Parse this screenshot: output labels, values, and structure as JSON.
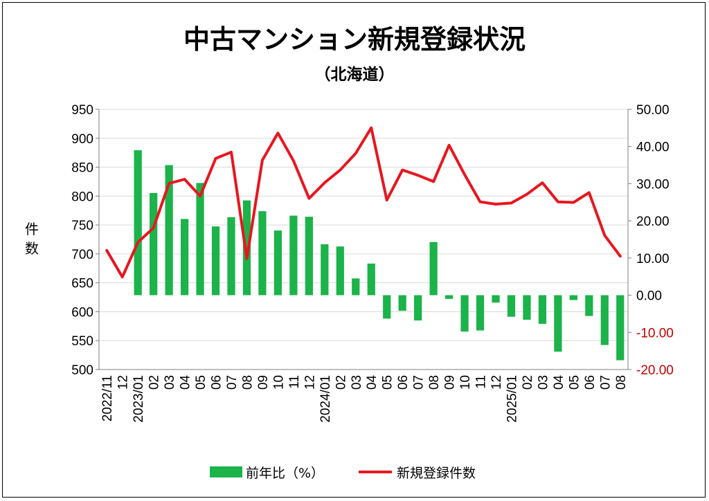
{
  "chart_data": {
    "type": "bar+line",
    "title": "中古マンション新規登録状況",
    "subtitle": "（北海道）",
    "ylabel_left": [
      "件",
      "数"
    ],
    "ylim_left": [
      500,
      950
    ],
    "yticks_left": [
      "500",
      "550",
      "600",
      "650",
      "700",
      "750",
      "800",
      "850",
      "900",
      "950"
    ],
    "ylim_right": [
      -20,
      50
    ],
    "yticks_right": [
      "-20.00",
      "-10.00",
      "0.00",
      "10.00",
      "20.00",
      "30.00",
      "40.00",
      "50.00"
    ],
    "categories": [
      "2022/11",
      "12",
      "2023/01",
      "02",
      "03",
      "04",
      "05",
      "06",
      "07",
      "08",
      "09",
      "10",
      "11",
      "12",
      "2024/01",
      "02",
      "03",
      "04",
      "05",
      "06",
      "07",
      "08",
      "09",
      "10",
      "11",
      "12",
      "2025/01",
      "02",
      "03",
      "04",
      "05",
      "06",
      "07",
      "08"
    ],
    "series": [
      {
        "name": "前年比（%）",
        "type": "bar",
        "axis": "right",
        "color": "#1bb34a",
        "values": [
          null,
          null,
          39.0,
          27.5,
          35.0,
          20.5,
          30.2,
          18.5,
          21.0,
          25.5,
          22.6,
          17.4,
          21.4,
          21.1,
          13.7,
          13.1,
          4.5,
          8.5,
          -6.3,
          -4.2,
          -6.8,
          14.3,
          -1.0,
          -9.8,
          -9.5,
          -2.0,
          -5.8,
          -6.6,
          -7.7,
          -15.2,
          -1.3,
          -5.6,
          -13.4,
          -17.5
        ]
      },
      {
        "name": "新規登録件数",
        "type": "line",
        "axis": "left",
        "color": "#e8161e",
        "values": [
          706,
          660,
          720,
          745,
          822,
          829,
          800,
          865,
          876,
          692,
          862,
          909,
          861,
          796,
          823,
          845,
          874,
          918,
          793,
          845,
          836,
          825,
          888,
          837,
          790,
          786,
          788,
          803,
          823,
          790,
          789,
          806,
          732,
          696
        ]
      }
    ],
    "legend_position": "bottom",
    "grid": true
  }
}
